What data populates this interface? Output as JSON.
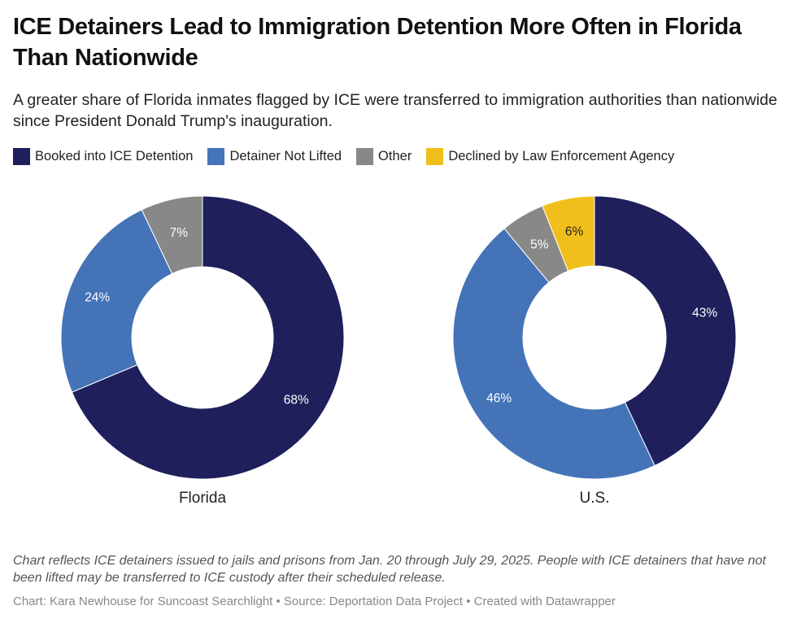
{
  "header": {
    "title": "ICE Detainers Lead to Immigration Detention More Often in Florida Than Nationwide",
    "subtitle": "A greater share of Florida inmates flagged by ICE were transferred to immigration authorities than nationwide since President Donald Trump's inauguration."
  },
  "legend": [
    {
      "label": "Booked into ICE Detention",
      "color": "#1f1f5c"
    },
    {
      "label": "Detainer Not Lifted",
      "color": "#4473b8"
    },
    {
      "label": "Other",
      "color": "#888888"
    },
    {
      "label": "Declined by Law Enforcement Agency",
      "color": "#f0bf1b"
    }
  ],
  "chart_data": [
    {
      "type": "pie",
      "subtype": "donut",
      "title": "Florida",
      "categories": [
        "Booked into ICE Detention",
        "Detainer Not Lifted",
        "Other",
        "Declined by Law Enforcement Agency"
      ],
      "values": [
        68,
        24,
        7,
        0
      ],
      "labels": [
        "68%",
        "24%",
        "7%",
        ""
      ],
      "colors": [
        "#1f1f5c",
        "#4473b8",
        "#888888",
        "#f0bf1b"
      ],
      "label_colors": [
        "#ffffff",
        "#ffffff",
        "#ffffff",
        "#222222"
      ],
      "unit": "%"
    },
    {
      "type": "pie",
      "subtype": "donut",
      "title": "U.S.",
      "categories": [
        "Booked into ICE Detention",
        "Detainer Not Lifted",
        "Other",
        "Declined by Law Enforcement Agency"
      ],
      "values": [
        43,
        46,
        5,
        6
      ],
      "labels": [
        "43%",
        "46%",
        "5%",
        "6%"
      ],
      "colors": [
        "#1f1f5c",
        "#4473b8",
        "#888888",
        "#f0bf1b"
      ],
      "label_colors": [
        "#ffffff",
        "#ffffff",
        "#ffffff",
        "#222222"
      ],
      "unit": "%"
    }
  ],
  "footer": {
    "notes": "Chart reflects ICE detainers issued to jails and prisons from Jan. 20 through July 29, 2025. People with ICE detainers that have not been lifted may be transferred to ICE custody after their scheduled release.",
    "byline": "Chart: Kara Newhouse for Suncoast Searchlight • Source: Deportation Data Project • Created with Datawrapper"
  }
}
